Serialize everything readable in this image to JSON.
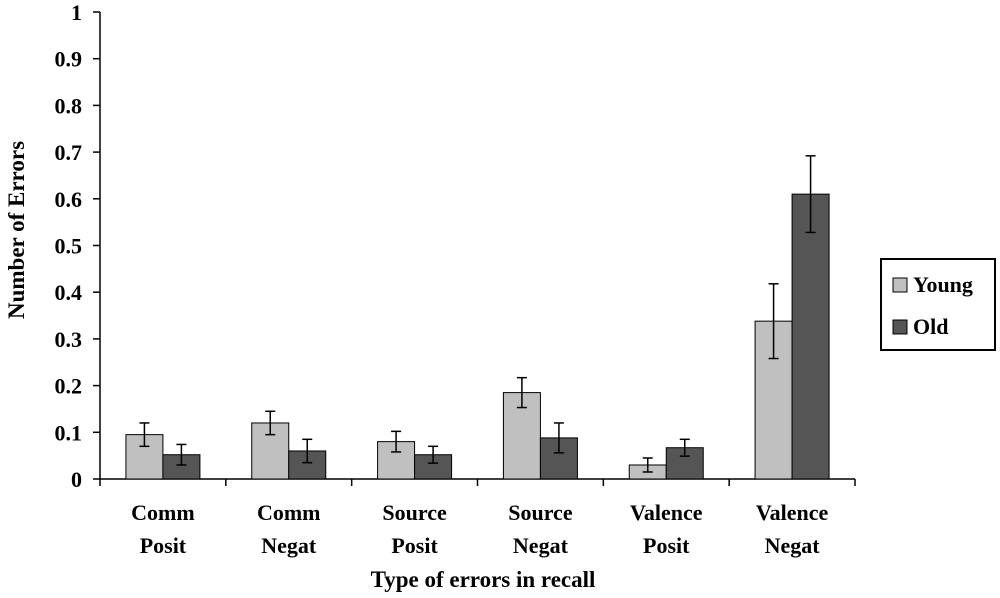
{
  "chart_data": {
    "type": "bar",
    "categories": [
      [
        "Comm",
        "Posit"
      ],
      [
        "Comm",
        "Negat"
      ],
      [
        "Source",
        "Posit"
      ],
      [
        "Source",
        "Negat"
      ],
      [
        "Valence",
        "Posit"
      ],
      [
        "Valence",
        "Negat"
      ]
    ],
    "series": [
      {
        "name": "Young",
        "color": "#c0c0c0",
        "values": [
          0.095,
          0.12,
          0.08,
          0.185,
          0.03,
          0.338
        ],
        "error": [
          0.025,
          0.025,
          0.022,
          0.032,
          0.015,
          0.08
        ]
      },
      {
        "name": "Old",
        "color": "#555555",
        "values": [
          0.052,
          0.06,
          0.052,
          0.088,
          0.067,
          0.61
        ],
        "error": [
          0.022,
          0.025,
          0.018,
          0.032,
          0.018,
          0.082
        ]
      }
    ],
    "ylim": [
      0,
      1
    ],
    "yticks": [
      "0",
      "0.1",
      "0.2",
      "0.3",
      "0.4",
      "0.5",
      "0.6",
      "0.7",
      "0.8",
      "0.9",
      "1"
    ],
    "xlabel": "Type of errors in recall",
    "ylabel": "Number of Errors",
    "legend": "right",
    "grid": false
  }
}
